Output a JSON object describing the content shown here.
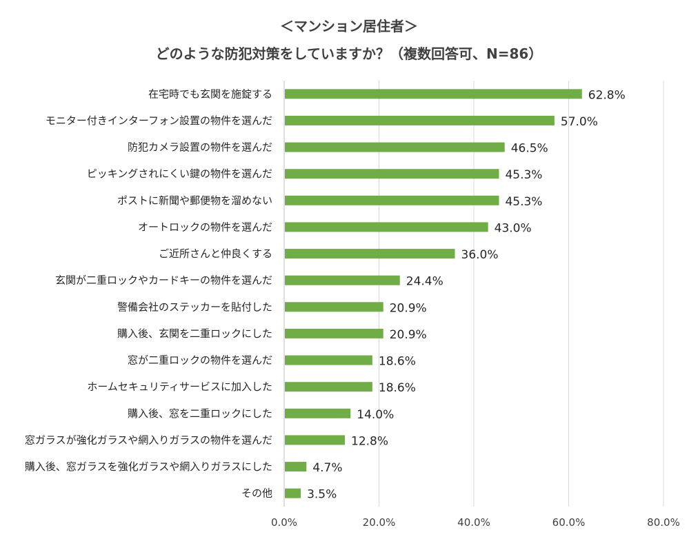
{
  "chart_data": {
    "type": "bar",
    "orientation": "horizontal",
    "title": "＜マンション居住者＞",
    "subtitle": "どのような防犯対策をしていますか？（複数回答可、N=86）",
    "categories": [
      "在宅時でも玄関を施錠する",
      "モニター付きインターフォン設置の物件を選んだ",
      "防犯カメラ設置の物件を選んだ",
      "ピッキングされにくい鍵の物件を選んだ",
      "ポストに新聞や郵便物を溜めない",
      "オートロックの物件を選んだ",
      "ご近所さんと仲良くする",
      "玄関が二重ロックやカードキーの物件を選んだ",
      "警備会社のステッカーを貼付した",
      "購入後、玄関を二重ロックにした",
      "窓が二重ロックの物件を選んだ",
      "ホームセキュリティサービスに加入した",
      "購入後、窓を二重ロックにした",
      "窓ガラスが強化ガラスや網入りガラスの物件を選んだ",
      "購入後、窓ガラスを強化ガラスや網入りガラスにした",
      "その他"
    ],
    "values": [
      62.8,
      57.0,
      46.5,
      45.3,
      45.3,
      43.0,
      36.0,
      24.4,
      20.9,
      20.9,
      18.6,
      18.6,
      14.0,
      12.8,
      4.7,
      3.5
    ],
    "value_labels": [
      "62.8%",
      "57.0%",
      "46.5%",
      "45.3%",
      "45.3%",
      "43.0%",
      "36.0%",
      "24.4%",
      "20.9%",
      "20.9%",
      "18.6%",
      "18.6%",
      "14.0%",
      "12.8%",
      "4.7%",
      "3.5%"
    ],
    "xlim": [
      0,
      80
    ],
    "xticks": [
      "0.0%",
      "20.0%",
      "40.0%",
      "60.0%",
      "80.0%"
    ],
    "xlabel": "",
    "ylabel": "",
    "grid": true,
    "legend": "none",
    "bar_color": "#70AD47",
    "grid_color": "#D9D9D9"
  }
}
